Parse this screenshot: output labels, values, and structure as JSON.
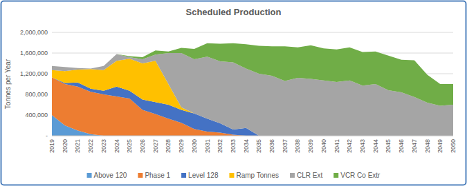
{
  "chart_data": {
    "type": "area",
    "stacked": true,
    "title": "Scheduled Production",
    "y_label": "Tonnes per Year",
    "categories": [
      "2019",
      "2020",
      "2021",
      "2022",
      "2023",
      "2024",
      "2025",
      "2026",
      "2027",
      "2028",
      "2029",
      "2030",
      "2031",
      "2032",
      "2033",
      "2034",
      "2035",
      "2036",
      "2037",
      "2038",
      "2039",
      "2040",
      "2041",
      "2042",
      "2043",
      "2044",
      "2045",
      "2046",
      "2047",
      "2048",
      "2049",
      "2050"
    ],
    "series": [
      {
        "name": "Above 120",
        "color": "#5b9bd5",
        "values": [
          400000,
          200000,
          100000,
          30000,
          0,
          0,
          0,
          0,
          0,
          0,
          0,
          0,
          0,
          0,
          0,
          0,
          0,
          0,
          0,
          0,
          0,
          0,
          0,
          0,
          0,
          0,
          0,
          0,
          0,
          0,
          0,
          0
        ]
      },
      {
        "name": "Phase 1",
        "color": "#ed7d31",
        "values": [
          730000,
          800000,
          850000,
          820000,
          800000,
          760000,
          720000,
          500000,
          420000,
          330000,
          250000,
          130000,
          80000,
          60000,
          20000,
          0,
          0,
          0,
          0,
          0,
          0,
          0,
          0,
          0,
          0,
          0,
          0,
          0,
          0,
          0,
          0,
          0
        ]
      },
      {
        "name": "Level 128",
        "color": "#4472c4",
        "values": [
          0,
          20000,
          80000,
          60000,
          70000,
          190000,
          150000,
          200000,
          230000,
          270000,
          250000,
          300000,
          250000,
          180000,
          100000,
          150000,
          0,
          0,
          0,
          0,
          0,
          0,
          0,
          0,
          0,
          0,
          0,
          0,
          0,
          0,
          0,
          0
        ]
      },
      {
        "name": "Ramp Tonnes",
        "color": "#ffc000",
        "values": [
          140000,
          230000,
          250000,
          380000,
          400000,
          500000,
          620000,
          700000,
          800000,
          400000,
          50000,
          0,
          0,
          0,
          0,
          0,
          0,
          0,
          0,
          0,
          0,
          0,
          0,
          0,
          0,
          0,
          0,
          0,
          0,
          0,
          0,
          0
        ]
      },
      {
        "name": "CLR Ext",
        "color": "#a5a5a5",
        "values": [
          80000,
          80000,
          30000,
          10000,
          80000,
          130000,
          30000,
          80000,
          120000,
          600000,
          1050000,
          1050000,
          1200000,
          1200000,
          1300000,
          1150000,
          1200000,
          1160000,
          1060000,
          1120000,
          1100000,
          1070000,
          1040000,
          1070000,
          970000,
          1000000,
          880000,
          840000,
          750000,
          640000,
          580000,
          600000
        ]
      },
      {
        "name": "VCR Co Extr",
        "color": "#70ad47",
        "values": [
          0,
          0,
          0,
          0,
          0,
          0,
          20000,
          40000,
          80000,
          30000,
          100000,
          200000,
          260000,
          340000,
          370000,
          470000,
          540000,
          570000,
          670000,
          590000,
          650000,
          620000,
          630000,
          640000,
          650000,
          630000,
          670000,
          630000,
          710000,
          540000,
          420000,
          400000
        ]
      }
    ],
    "ylim": [
      0,
      2000000
    ],
    "yticks": [
      {
        "value": 0,
        "label": "-"
      },
      {
        "value": 400000,
        "label": "400,000"
      },
      {
        "value": 800000,
        "label": "800,000"
      },
      {
        "value": 1200000,
        "label": "1,200,000"
      },
      {
        "value": 1600000,
        "label": "1,600,000"
      },
      {
        "value": 2000000,
        "label": "2,000,000"
      }
    ],
    "grid": true,
    "legend": "bottom"
  }
}
